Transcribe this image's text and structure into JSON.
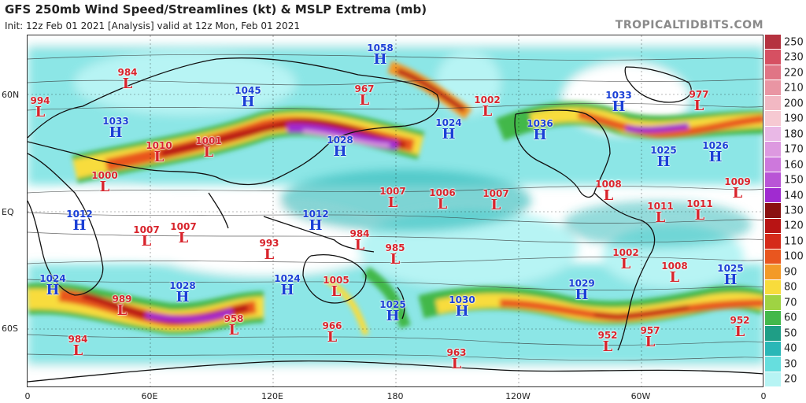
{
  "header": {
    "title": "GFS 250mb Wind Speed/Streamlines (kt) & MSLP Extrema (mb)",
    "subtitle": "Init: 12z Feb 01 2021   [Analysis]   valid at 12z Mon, Feb 01 2021",
    "brand": "TROPICALTIDBITS.COM"
  },
  "axes": {
    "lat_labels": [
      "60N",
      "EQ",
      "60S"
    ],
    "lon_labels": [
      "0",
      "60E",
      "120E",
      "180",
      "120W",
      "60W",
      "0"
    ]
  },
  "colorbar": {
    "labels": [
      "250",
      "230",
      "220",
      "210",
      "200",
      "190",
      "180",
      "170",
      "160",
      "150",
      "140",
      "130",
      "120",
      "110",
      "100",
      "90",
      "80",
      "70",
      "60",
      "50",
      "40",
      "30",
      "20"
    ],
    "colors": [
      "#b5323f",
      "#d65062",
      "#e07585",
      "#e995a3",
      "#f2b8c3",
      "#f6c9d2",
      "#e9b8e6",
      "#dd99e0",
      "#cd78dc",
      "#b955d6",
      "#a02bd0",
      "#8a1010",
      "#b81414",
      "#d52a1a",
      "#e9561f",
      "#f39a28",
      "#f8dc3c",
      "#9fd343",
      "#43b84a",
      "#1f9e86",
      "#2ab7b7",
      "#66dede",
      "#b7f4f4"
    ]
  },
  "pressure_systems": [
    {
      "type": "L",
      "value": "984"
    },
    {
      "type": "L",
      "value": "994"
    },
    {
      "type": "H",
      "value": "1033"
    },
    {
      "type": "H",
      "value": "1045"
    },
    {
      "type": "H",
      "value": "1058"
    },
    {
      "type": "L",
      "value": "967"
    },
    {
      "type": "L",
      "value": "1002"
    },
    {
      "type": "H",
      "value": "1024"
    },
    {
      "type": "H",
      "value": "1036"
    },
    {
      "type": "H",
      "value": "1033"
    },
    {
      "type": "L",
      "value": "977"
    },
    {
      "type": "L",
      "value": "1010"
    },
    {
      "type": "L",
      "value": "1001"
    },
    {
      "type": "H",
      "value": "1028"
    },
    {
      "type": "H",
      "value": "1025"
    },
    {
      "type": "H",
      "value": "1026"
    },
    {
      "type": "L",
      "value": "1000"
    },
    {
      "type": "L",
      "value": "1007"
    },
    {
      "type": "L",
      "value": "1006"
    },
    {
      "type": "L",
      "value": "1007"
    },
    {
      "type": "L",
      "value": "1008"
    },
    {
      "type": "L",
      "value": "1009"
    },
    {
      "type": "H",
      "value": "1012"
    },
    {
      "type": "L",
      "value": "1007"
    },
    {
      "type": "L",
      "value": "1007"
    },
    {
      "type": "H",
      "value": "1012"
    },
    {
      "type": "L",
      "value": "984"
    },
    {
      "type": "L",
      "value": "993"
    },
    {
      "type": "L",
      "value": "985"
    },
    {
      "type": "L",
      "value": "1011"
    },
    {
      "type": "L",
      "value": "1011"
    },
    {
      "type": "L",
      "value": "1002"
    },
    {
      "type": "L",
      "value": "1008"
    },
    {
      "type": "H",
      "value": "1025"
    },
    {
      "type": "H",
      "value": "1024"
    },
    {
      "type": "L",
      "value": "989"
    },
    {
      "type": "H",
      "value": "1028"
    },
    {
      "type": "H",
      "value": "1024"
    },
    {
      "type": "L",
      "value": "1005"
    },
    {
      "type": "H",
      "value": "1029"
    },
    {
      "type": "L",
      "value": "958"
    },
    {
      "type": "H",
      "value": "1025"
    },
    {
      "type": "H",
      "value": "1030"
    },
    {
      "type": "L",
      "value": "984"
    },
    {
      "type": "L",
      "value": "966"
    },
    {
      "type": "L",
      "value": "963"
    },
    {
      "type": "L",
      "value": "952"
    },
    {
      "type": "L",
      "value": "957"
    },
    {
      "type": "L",
      "value": "952"
    }
  ]
}
